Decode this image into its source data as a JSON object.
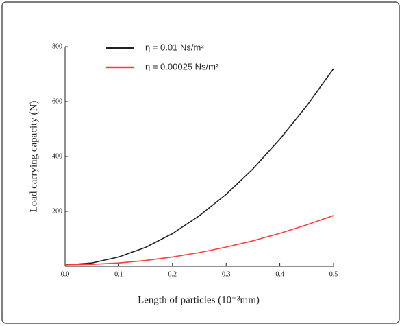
{
  "chart_data": {
    "type": "line",
    "x": [
      0,
      0.05,
      0.1,
      0.15,
      0.2,
      0.25,
      0.3,
      0.35,
      0.4,
      0.45,
      0.5
    ],
    "series": [
      {
        "name": "η = 0.01 Ns/m²",
        "color": "#222222",
        "values": [
          5,
          12,
          34,
          69,
          119,
          184,
          262,
          355,
          463,
          584,
          720
        ]
      },
      {
        "name": "η = 0.00025 Ns/m²",
        "color": "#ff3b3b",
        "values": [
          5,
          7,
          12,
          21,
          34,
          50,
          70,
          93,
          120,
          151,
          185
        ]
      }
    ],
    "xlabel": "Length of particles (10⁻³mm)",
    "ylabel": "Load carrying capacity  (N)",
    "xlim": [
      0,
      0.5
    ],
    "ylim": [
      0,
      800
    ],
    "xticks": [
      {
        "value": 0,
        "label": "0.0"
      },
      0.1,
      0.2,
      0.3,
      0.4,
      0.5
    ],
    "yticks": [
      200,
      400,
      600,
      800
    ]
  }
}
